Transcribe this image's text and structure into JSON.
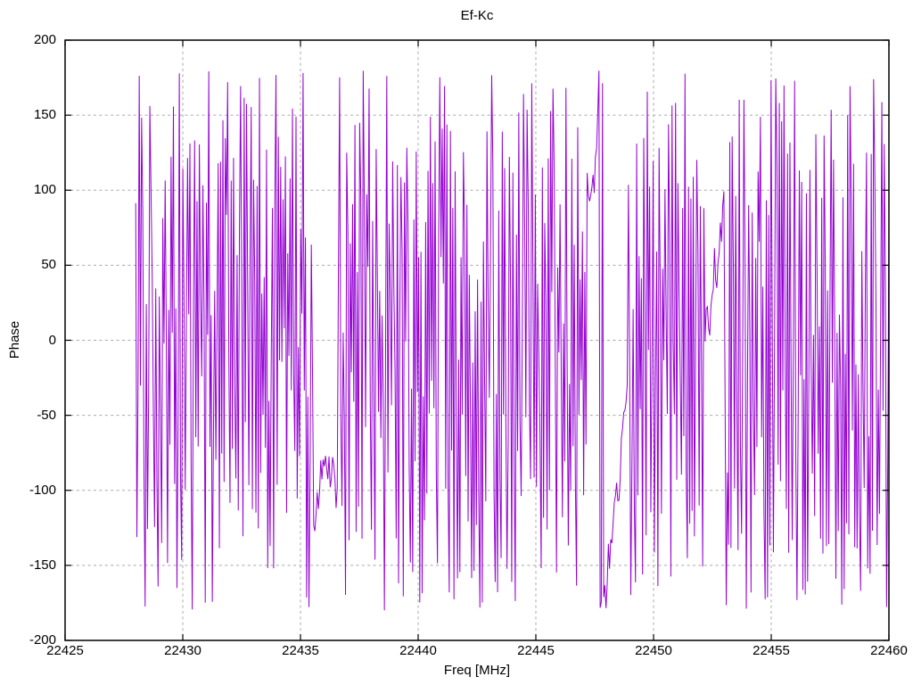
{
  "title": "Ef-Kc",
  "colors": {
    "background": "#ffffff",
    "axis": "#000000",
    "grid": "#a8a8a8",
    "text": "#000000",
    "line": "#9400d3"
  },
  "chart_data": {
    "type": "line",
    "title": "Ef-Kc",
    "xlabel": "Freq [MHz]",
    "ylabel": "Phase",
    "xlim": [
      22425,
      22460
    ],
    "ylim": [
      -200,
      200
    ],
    "xticks": [
      22425,
      22430,
      22435,
      22440,
      22445,
      22450,
      22455,
      22460
    ],
    "yticks": [
      -200,
      -150,
      -100,
      -50,
      0,
      50,
      100,
      150,
      200
    ],
    "grid": true,
    "legend": "none",
    "series": [
      {
        "name": "Ef-Kc",
        "color": "#9400d3",
        "line_width": 1,
        "character": "phase noise wrapped to [-180,180] deg, dense vertical wrap strokes",
        "x_start": 22428,
        "x_end": 22460,
        "n_points": 640,
        "seed": 77,
        "y_wrap": [
          -180,
          180
        ],
        "fast_step_deg": [
          80,
          315
        ],
        "slow_step_deg": [
          -22,
          28
        ],
        "slow_bands": [
          [
            22435.6,
            22436.6
          ],
          [
            22447.2,
            22448.9
          ],
          [
            22452.2,
            22453.0
          ]
        ]
      }
    ]
  }
}
